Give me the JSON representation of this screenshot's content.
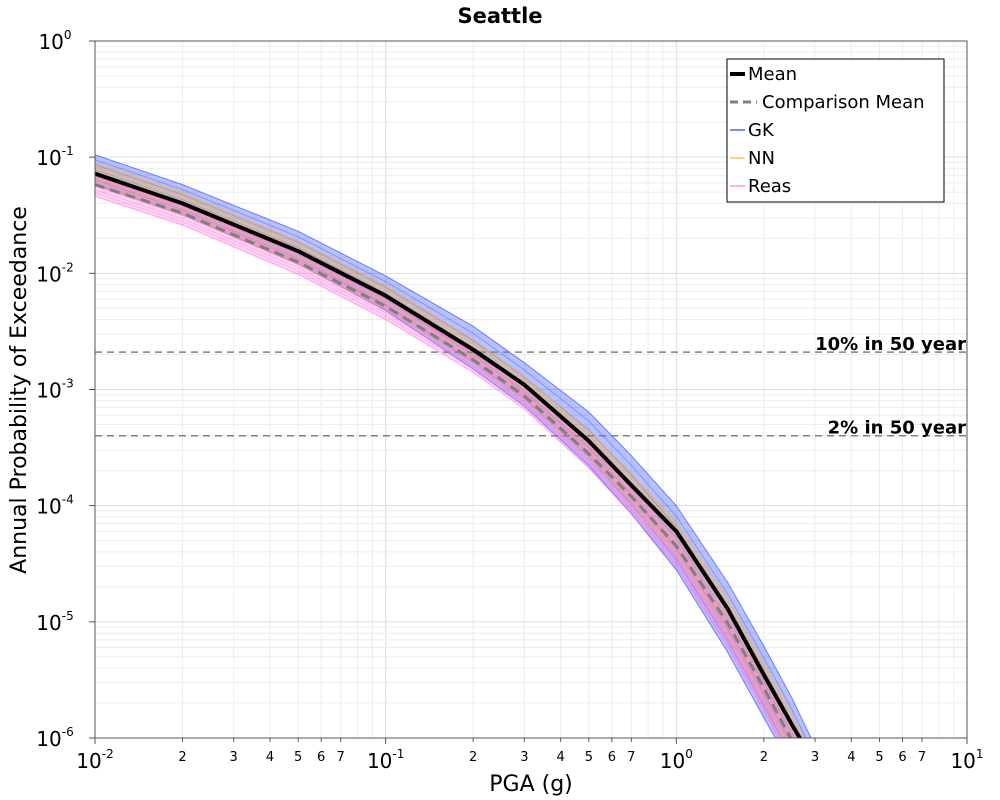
{
  "chart_data": {
    "type": "line",
    "title": "Seattle",
    "xlabel": "PGA (g)",
    "ylabel": "Annual Probability of Exceedance",
    "xscale": "log",
    "yscale": "log",
    "xlim": [
      0.01,
      10
    ],
    "ylim": [
      1e-06,
      1
    ],
    "grid": true,
    "legend_position": "top-right",
    "x_ticks": [
      {
        "base": "10",
        "exp": "-2"
      },
      {
        "base": "10",
        "exp": "-1"
      },
      {
        "base": "10",
        "exp": "0"
      },
      {
        "base": "10",
        "exp": "1"
      }
    ],
    "x_minor_labels": [
      "2",
      "3",
      "4",
      "5",
      "6",
      "7"
    ],
    "y_ticks": [
      {
        "base": "10",
        "exp": "0"
      },
      {
        "base": "10",
        "exp": "-1"
      },
      {
        "base": "10",
        "exp": "-2"
      },
      {
        "base": "10",
        "exp": "-3"
      },
      {
        "base": "10",
        "exp": "-4"
      },
      {
        "base": "10",
        "exp": "-5"
      },
      {
        "base": "10",
        "exp": "-6"
      }
    ],
    "x": [
      0.01,
      0.02,
      0.05,
      0.1,
      0.2,
      0.3,
      0.5,
      0.7,
      1.0,
      1.5,
      2.0,
      2.5,
      3.0
    ],
    "series": [
      {
        "name": "Mean",
        "color": "#000000",
        "style": "solid",
        "values": [
          0.072,
          0.04,
          0.0155,
          0.0064,
          0.0022,
          0.0011,
          0.00036,
          0.00015,
          6e-05,
          1.3e-05,
          3.5e-06,
          1.3e-06,
          6e-07
        ]
      },
      {
        "name": "Comparison Mean",
        "color": "#7f7f7f",
        "style": "dashed",
        "values": [
          0.058,
          0.033,
          0.0125,
          0.0052,
          0.0018,
          0.00088,
          0.00028,
          0.00012,
          4.5e-05,
          9.8e-06,
          2.7e-06,
          9.5e-07,
          4.2e-07
        ]
      },
      {
        "name": "GK",
        "color": "#1f3fff",
        "style": "band",
        "lower": [
          0.058,
          0.032,
          0.012,
          0.0048,
          0.0015,
          0.00072,
          0.00022,
          8.5e-05,
          2.8e-05,
          5.5e-06,
          1.5e-06,
          5.5e-07,
          2.5e-07
        ],
        "upper": [
          0.105,
          0.058,
          0.023,
          0.0095,
          0.0035,
          0.0017,
          0.00064,
          0.00027,
          0.0001,
          2.2e-05,
          6.2e-06,
          2.2e-06,
          8.5e-07
        ]
      },
      {
        "name": "NN",
        "color": "#f5b041",
        "style": "band",
        "lower": [
          0.057,
          0.032,
          0.012,
          0.0049,
          0.0017,
          0.00082,
          0.00026,
          0.0001,
          3.7e-05,
          7.5e-06,
          2e-06,
          7e-07,
          3e-07
        ],
        "upper": [
          0.09,
          0.05,
          0.019,
          0.0079,
          0.0027,
          0.0013,
          0.00044,
          0.00019,
          7.3e-05,
          1.6e-05,
          4.4e-06,
          1.6e-06,
          6.5e-07
        ]
      },
      {
        "name": "Reas",
        "color": "#ff77dd",
        "style": "band",
        "lower": [
          0.046,
          0.026,
          0.0098,
          0.004,
          0.0014,
          0.00068,
          0.00021,
          8.5e-05,
          3e-05,
          6.2e-06,
          1.7e-06,
          6e-07,
          2.8e-07
        ],
        "upper": [
          0.068,
          0.038,
          0.0145,
          0.006,
          0.0021,
          0.001,
          0.00033,
          0.00014,
          5.2e-05,
          1.1e-05,
          3e-06,
          1.1e-06,
          4.8e-07
        ]
      }
    ],
    "annotations": [
      {
        "text": "10% in 50 year",
        "y": 0.0021
      },
      {
        "text": "2% in 50 year",
        "y": 0.0004
      }
    ]
  }
}
